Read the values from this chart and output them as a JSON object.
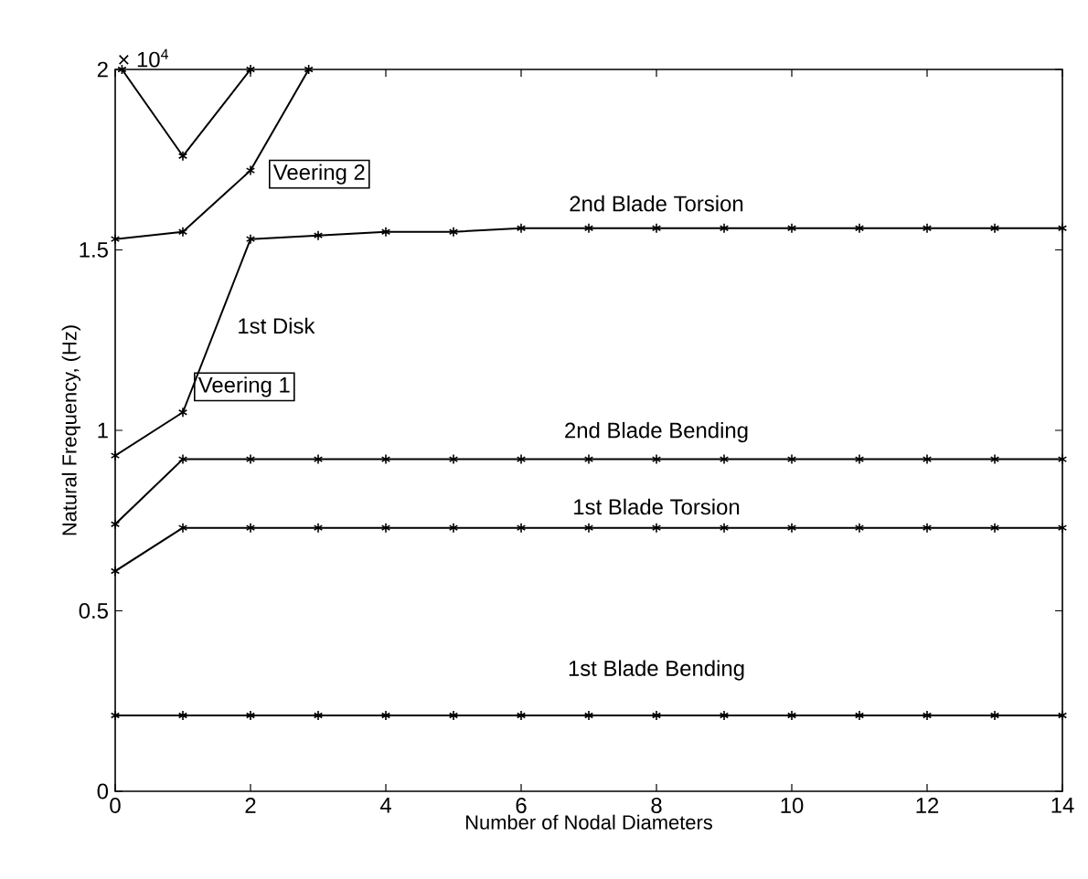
{
  "chart_data": {
    "type": "line",
    "xlabel": "Number of Nodal Diameters",
    "ylabel": "Natural Frequency, (Hz)",
    "x": [
      0,
      1,
      2,
      3,
      4,
      5,
      6,
      7,
      8,
      9,
      10,
      11,
      12,
      13,
      14
    ],
    "series": [
      {
        "color": "#000000",
        "values": [
          0.21,
          0.21,
          0.21,
          0.21,
          0.21,
          0.21,
          0.21,
          0.21,
          0.21,
          0.21,
          0.21,
          0.21,
          0.21,
          0.21,
          0.21
        ]
      },
      {
        "color": "#000000",
        "values": [
          0.61,
          0.73,
          0.73,
          0.73,
          0.73,
          0.73,
          0.73,
          0.73,
          0.73,
          0.73,
          0.73,
          0.73,
          0.73,
          0.73,
          0.73
        ]
      },
      {
        "color": "#000000",
        "values": [
          0.74,
          0.92,
          0.92,
          0.92,
          0.92,
          0.92,
          0.92,
          0.92,
          0.92,
          0.92,
          0.92,
          0.92,
          0.92,
          0.92,
          0.92
        ]
      },
      {
        "color": "#000000",
        "values": [
          0.93,
          1.05,
          1.53,
          1.54,
          1.55,
          1.55,
          1.56,
          1.56,
          1.56,
          1.56,
          1.56,
          1.56,
          1.56,
          1.56,
          1.56
        ]
      },
      {
        "color": "#000000",
        "x": [
          0,
          1,
          2,
          2.86
        ],
        "values": [
          1.53,
          1.55,
          1.72,
          2.0
        ]
      },
      {
        "color": "#000000",
        "x": [
          0.1,
          1,
          2
        ],
        "values": [
          2.0,
          1.76,
          2.0
        ]
      }
    ],
    "xlim": [
      0,
      14
    ],
    "xticks": [
      0,
      2,
      4,
      6,
      8,
      10,
      12,
      14
    ],
    "ylim": [
      0,
      2
    ],
    "yticks": [
      0,
      0.5,
      1,
      1.5,
      2
    ],
    "marker": "cross",
    "grid": false,
    "annotations": [
      "× 10$^{4}$",
      {
        "text": "2nd Blade Torsion",
        "x": 8,
        "y": 1.56
      },
      {
        "text": "1st Disk",
        "x": 1.5,
        "y": 1.29
      },
      {
        "text": "Veering 1",
        "x": 1,
        "y": 1.05
      },
      {
        "text": "Veering 2",
        "x": 2,
        "y": 1.72
      },
      {
        "text": "2nd Blade Bending",
        "x": 8,
        "y": 0.92
      },
      {
        "text": "1st Blade Torsion",
        "x": 8,
        "y": 0.73
      },
      {
        "text": "1st Blade Bending",
        "x": 8,
        "y": 0.21
      }
    ]
  }
}
